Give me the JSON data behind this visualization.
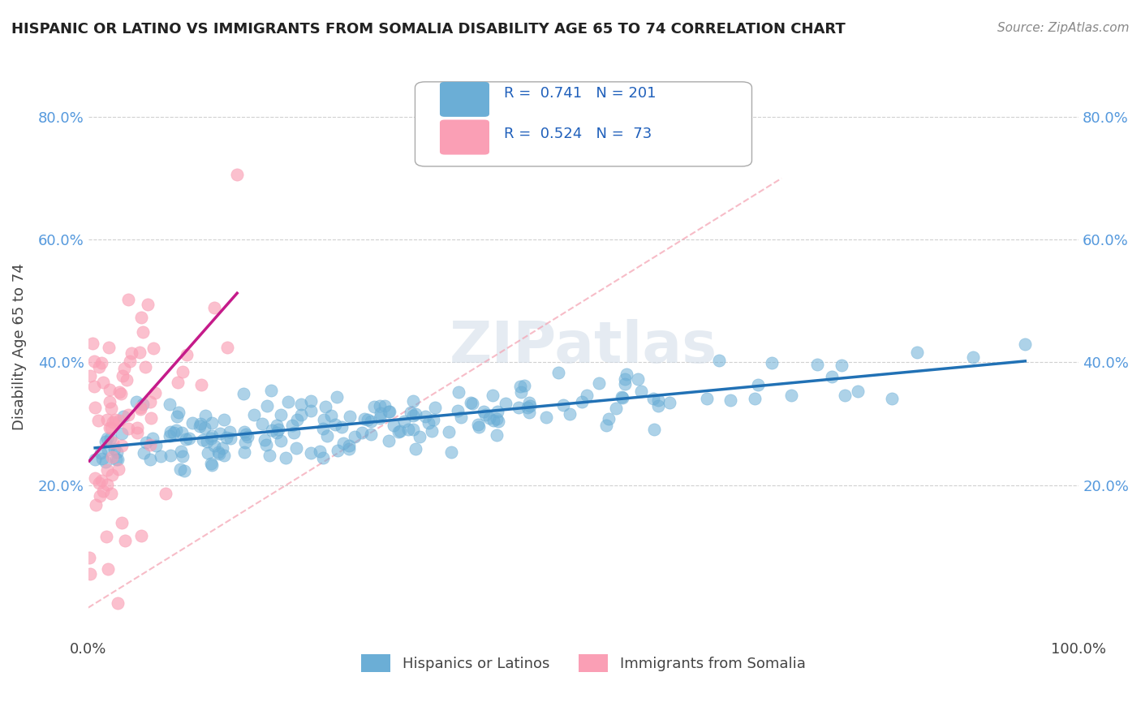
{
  "title": "HISPANIC OR LATINO VS IMMIGRANTS FROM SOMALIA DISABILITY AGE 65 TO 74 CORRELATION CHART",
  "source": "Source: ZipAtlas.com",
  "ylabel": "Disability Age 65 to 74",
  "xlabel": "",
  "xlim": [
    0.0,
    1.0
  ],
  "ylim": [
    -0.05,
    0.9
  ],
  "y_ticks": [
    0.2,
    0.4,
    0.6,
    0.8
  ],
  "y_tick_labels": [
    "20.0%",
    "40.0%",
    "60.0%",
    "80.0%"
  ],
  "x_ticks": [
    0.0,
    1.0
  ],
  "x_tick_labels": [
    "0.0%",
    "100.0%"
  ],
  "R_blue": 0.741,
  "N_blue": 201,
  "R_pink": 0.524,
  "N_pink": 73,
  "blue_color": "#6baed6",
  "pink_color": "#fa9fb5",
  "blue_line_color": "#2171b5",
  "pink_line_color": "#c51b8a",
  "watermark": "ZIPatlas",
  "background_color": "#ffffff",
  "grid_color": "#d0d0d0",
  "seed_blue": 42,
  "seed_pink": 99
}
